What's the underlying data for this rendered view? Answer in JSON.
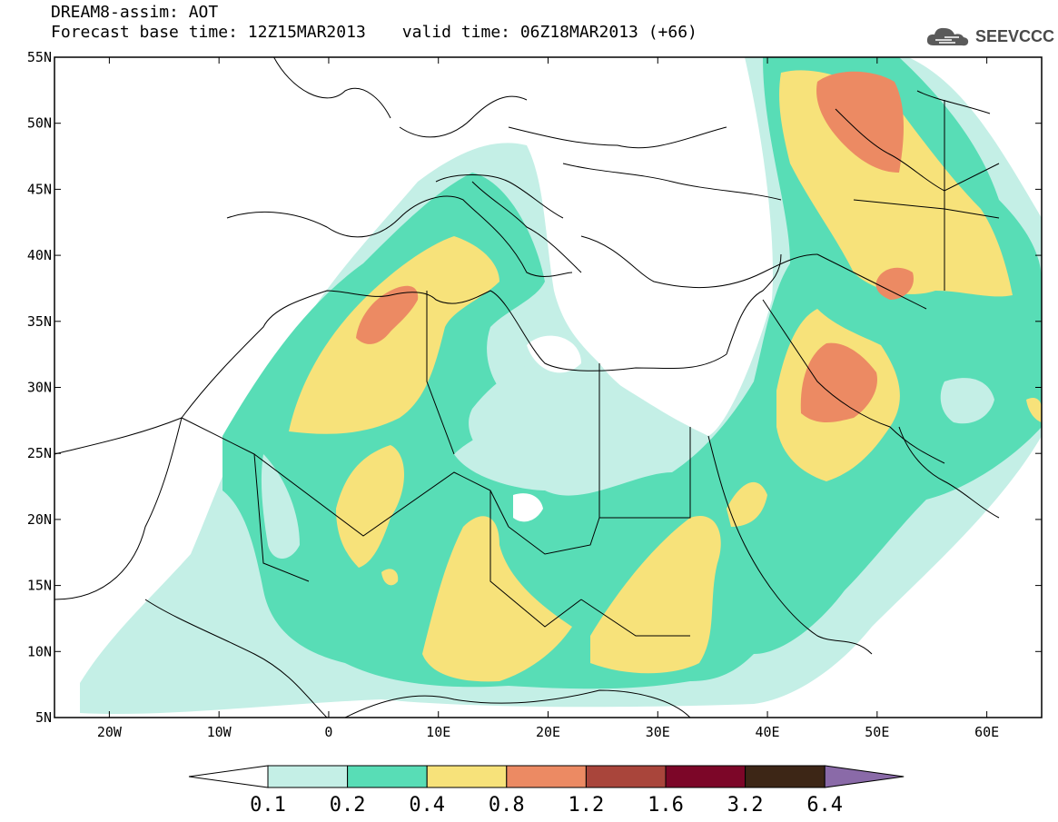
{
  "header": {
    "line1": "DREAM8-assim: AOT",
    "base_time": "Forecast base time: 12Z15MAR2013",
    "valid_time": "valid time: 06Z18MAR2013 (+66)",
    "logo_text": "SEEVCCC"
  },
  "map": {
    "lon_range": [
      -25,
      65
    ],
    "lat_range": [
      5,
      55
    ],
    "lat_ticks": [
      {
        "value": 55,
        "label": "55N"
      },
      {
        "value": 50,
        "label": "50N"
      },
      {
        "value": 45,
        "label": "45N"
      },
      {
        "value": 40,
        "label": "40N"
      },
      {
        "value": 35,
        "label": "35N"
      },
      {
        "value": 30,
        "label": "30N"
      },
      {
        "value": 25,
        "label": "25N"
      },
      {
        "value": 20,
        "label": "20N"
      },
      {
        "value": 15,
        "label": "15N"
      },
      {
        "value": 10,
        "label": "10N"
      },
      {
        "value": 5,
        "label": "5N"
      }
    ],
    "lon_ticks": [
      {
        "value": -20,
        "label": "20W"
      },
      {
        "value": -10,
        "label": "10W"
      },
      {
        "value": 0,
        "label": "0"
      },
      {
        "value": 10,
        "label": "10E"
      },
      {
        "value": 20,
        "label": "20E"
      },
      {
        "value": 30,
        "label": "30E"
      },
      {
        "value": 40,
        "label": "40E"
      },
      {
        "value": 50,
        "label": "50E"
      },
      {
        "value": 60,
        "label": "60E"
      }
    ]
  },
  "colorbar": {
    "labels": [
      "0.1",
      "0.2",
      "0.4",
      "0.8",
      "1.2",
      "1.6",
      "3.2",
      "6.4"
    ],
    "colors": [
      "#c4efe6",
      "#58ddb6",
      "#f7e27a",
      "#ec8a63",
      "#a9453b",
      "#7c0628",
      "#3d2616",
      "#8a6aa8"
    ]
  }
}
